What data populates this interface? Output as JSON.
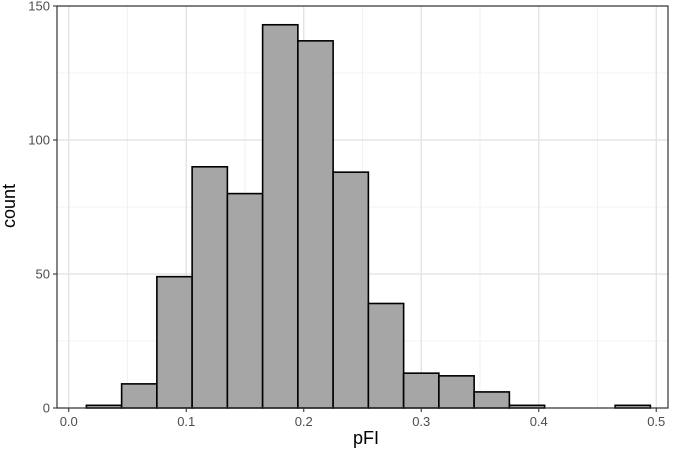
{
  "chart_data": {
    "type": "bar",
    "subtype": "histogram",
    "title": "",
    "xlabel": "pFI",
    "ylabel": "count",
    "xlim": [
      -0.01,
      0.51
    ],
    "ylim": [
      0,
      150
    ],
    "x_ticks": [
      0.0,
      0.1,
      0.2,
      0.3,
      0.4,
      0.5
    ],
    "x_tick_labels": [
      "0.0",
      "0.1",
      "0.2",
      "0.3",
      "0.4",
      "0.5"
    ],
    "y_ticks": [
      0,
      50,
      100,
      150
    ],
    "y_tick_labels": [
      "0",
      "50",
      "100",
      "150"
    ],
    "grid": true,
    "bar_fill": "#a6a6a6",
    "bar_stroke": "#000000",
    "bins": [
      {
        "x0": 0.015,
        "x1": 0.045,
        "count": 1
      },
      {
        "x0": 0.045,
        "x1": 0.075,
        "count": 9
      },
      {
        "x0": 0.075,
        "x1": 0.105,
        "count": 49
      },
      {
        "x0": 0.105,
        "x1": 0.135,
        "count": 90
      },
      {
        "x0": 0.135,
        "x1": 0.165,
        "count": 80
      },
      {
        "x0": 0.165,
        "x1": 0.195,
        "count": 143
      },
      {
        "x0": 0.195,
        "x1": 0.225,
        "count": 137
      },
      {
        "x0": 0.225,
        "x1": 0.255,
        "count": 88
      },
      {
        "x0": 0.255,
        "x1": 0.285,
        "count": 39
      },
      {
        "x0": 0.285,
        "x1": 0.315,
        "count": 13
      },
      {
        "x0": 0.315,
        "x1": 0.345,
        "count": 12
      },
      {
        "x0": 0.345,
        "x1": 0.375,
        "count": 6
      },
      {
        "x0": 0.375,
        "x1": 0.405,
        "count": 1
      },
      {
        "x0": 0.405,
        "x1": 0.435,
        "count": 0
      },
      {
        "x0": 0.435,
        "x1": 0.465,
        "count": 0
      },
      {
        "x0": 0.465,
        "x1": 0.495,
        "count": 1
      }
    ]
  }
}
